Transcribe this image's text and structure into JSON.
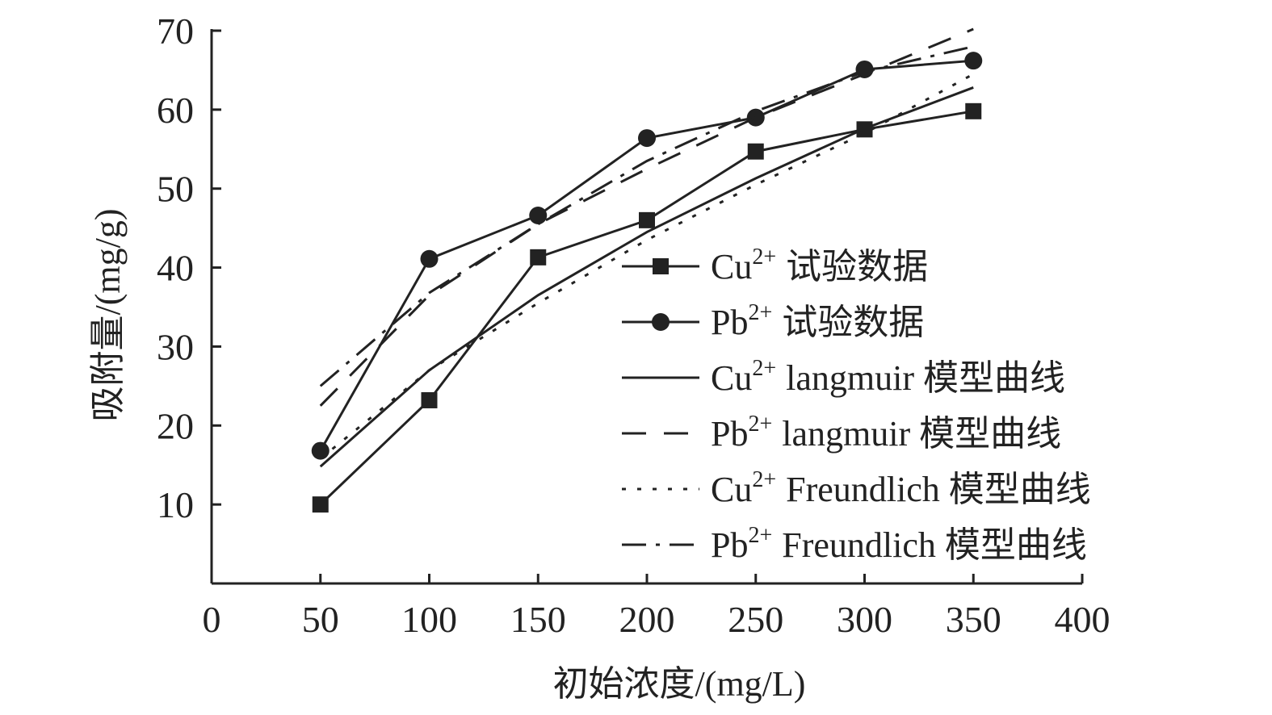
{
  "chart_data": {
    "type": "line",
    "xlabel": "初始浓度/(mg/L)",
    "ylabel": "吸附量/(mg/g)",
    "xlim": [
      0,
      400
    ],
    "ylim": [
      0,
      70
    ],
    "x_ticks": [
      0,
      50,
      100,
      150,
      200,
      250,
      300,
      350,
      400
    ],
    "y_ticks": [
      10,
      20,
      30,
      40,
      50,
      60,
      70
    ],
    "grid": false,
    "legend_position": "right",
    "x": [
      50,
      100,
      150,
      200,
      250,
      300,
      350
    ],
    "series": [
      {
        "ion": "Cu",
        "charge": "2+",
        "label": "试验数据",
        "style": "solid",
        "marker": "square",
        "values": [
          10.0,
          23.2,
          41.3,
          46.0,
          54.7,
          57.5,
          59.8
        ]
      },
      {
        "ion": "Pb",
        "charge": "2+",
        "label": "试验数据",
        "style": "solid",
        "marker": "circle",
        "values": [
          16.8,
          41.1,
          46.6,
          56.4,
          59.0,
          65.1,
          66.2
        ]
      },
      {
        "ion": "Cu",
        "charge": "2+",
        "label": "langmuir 模型曲线",
        "style": "solid",
        "marker": "none",
        "values": [
          14.8,
          27.0,
          36.5,
          44.5,
          51.3,
          57.6,
          62.8
        ]
      },
      {
        "ion": "Pb",
        "charge": "2+",
        "label": "langmuir 模型曲线",
        "style": "dash",
        "marker": "none",
        "values": [
          22.5,
          36.5,
          45.5,
          52.5,
          59.0,
          64.5,
          70.2
        ]
      },
      {
        "ion": "Cu",
        "charge": "2+",
        "label": "Freundlich 模型曲线",
        "style": "dot",
        "marker": "none",
        "values": [
          15.8,
          27.0,
          35.5,
          43.5,
          50.5,
          57.0,
          64.5
        ]
      },
      {
        "ion": "Pb",
        "charge": "2+",
        "label": "Freundlich 模型曲线",
        "style": "dashdot",
        "marker": "none",
        "values": [
          25.0,
          36.8,
          45.5,
          53.5,
          59.8,
          64.8,
          68.0
        ]
      }
    ]
  }
}
